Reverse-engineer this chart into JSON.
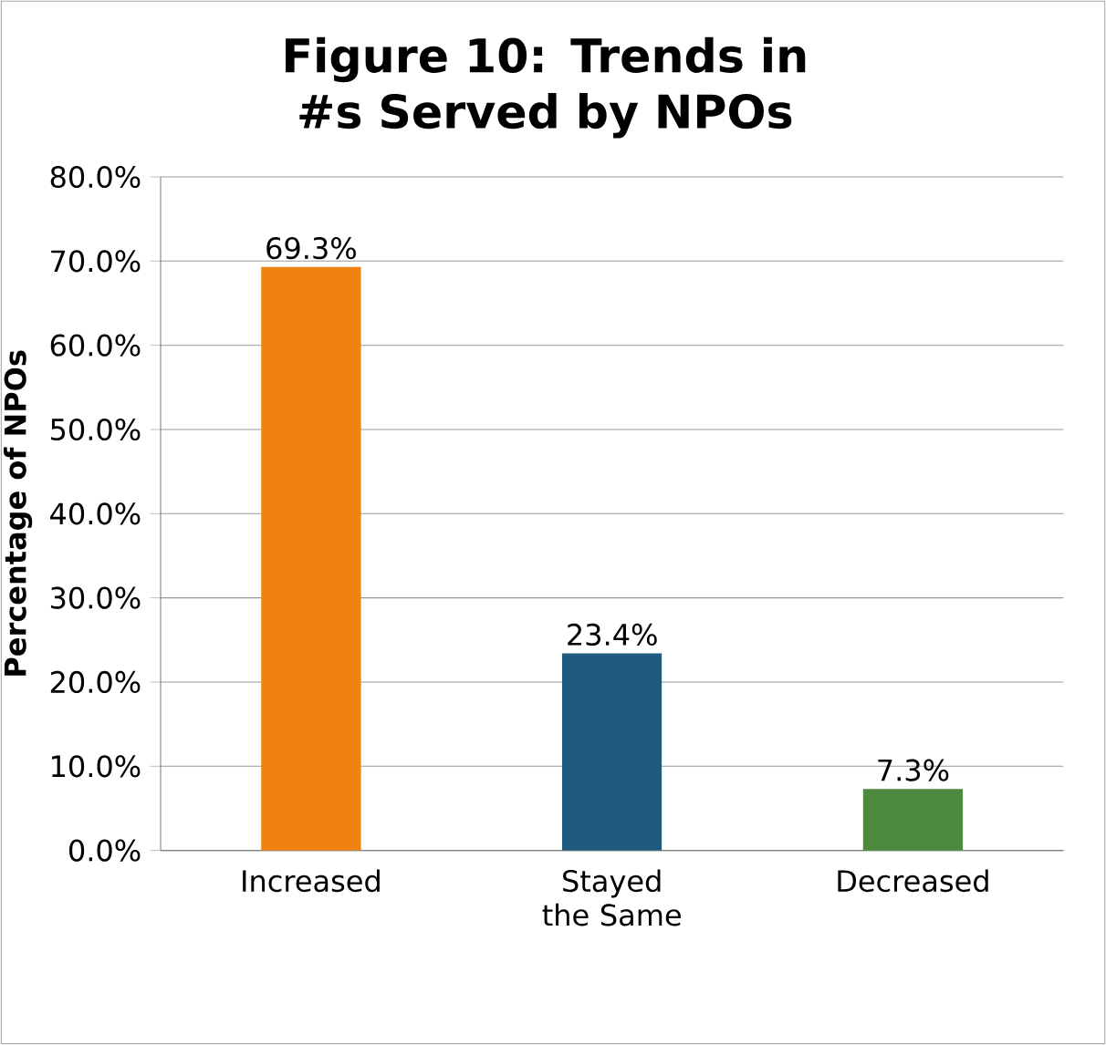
{
  "chart_data": {
    "type": "bar",
    "title": "Figure 10: Trends in #s Served by NPOs",
    "ylabel": "Percentage of NPOs",
    "categories": [
      "Increased",
      "Stayed the Same",
      "Decreased"
    ],
    "values": [
      69.3,
      23.4,
      7.3
    ],
    "colors": [
      "#f0820f",
      "#1f5a7f",
      "#4e8a3e"
    ],
    "value_labels": [
      "69.3%",
      "23.4%",
      "7.3%"
    ],
    "ylim": [
      0,
      80
    ],
    "yticks": [
      {
        "value": 0,
        "label": "0.0%"
      },
      {
        "value": 10,
        "label": "10.0%"
      },
      {
        "value": 20,
        "label": "20.0%"
      },
      {
        "value": 30,
        "label": "30.0%"
      },
      {
        "value": 40,
        "label": "40.0%"
      },
      {
        "value": 50,
        "label": "50.0%"
      },
      {
        "value": 60,
        "label": "60.0%"
      },
      {
        "value": 70,
        "label": "70.0%"
      },
      {
        "value": 80,
        "label": "80.0%"
      }
    ],
    "grid": "y"
  }
}
